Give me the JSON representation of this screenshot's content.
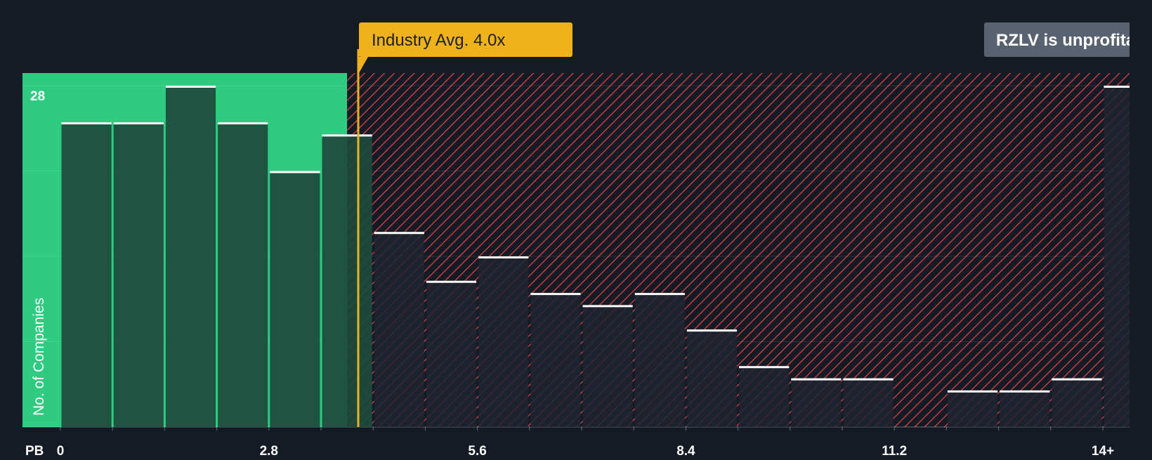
{
  "chart_data": {
    "type": "bar",
    "title": "",
    "xlabel": "PB",
    "ylabel": "No. of Companies",
    "y_tick_label": "28",
    "ylim": [
      0,
      29
    ],
    "bin_width": 0.7,
    "x_ticks": [
      {
        "value": 0,
        "label": "0"
      },
      {
        "value": 2.8,
        "label": "2.8"
      },
      {
        "value": 5.6,
        "label": "5.6"
      },
      {
        "value": 8.4,
        "label": "8.4"
      },
      {
        "value": 11.2,
        "label": "11.2"
      },
      {
        "value": 14,
        "label": "14+"
      }
    ],
    "bins": [
      {
        "x": 0.0,
        "count": 25
      },
      {
        "x": 0.7,
        "count": 25
      },
      {
        "x": 1.4,
        "count": 28
      },
      {
        "x": 2.1,
        "count": 25
      },
      {
        "x": 2.8,
        "count": 21
      },
      {
        "x": 3.5,
        "count": 24
      },
      {
        "x": 4.2,
        "count": 16
      },
      {
        "x": 4.9,
        "count": 12
      },
      {
        "x": 5.6,
        "count": 14
      },
      {
        "x": 6.3,
        "count": 11
      },
      {
        "x": 7.0,
        "count": 10
      },
      {
        "x": 7.7,
        "count": 11
      },
      {
        "x": 8.4,
        "count": 8
      },
      {
        "x": 9.1,
        "count": 5
      },
      {
        "x": 9.8,
        "count": 4
      },
      {
        "x": 10.5,
        "count": 4
      },
      {
        "x": 11.2,
        "count": 0
      },
      {
        "x": 11.9,
        "count": 3
      },
      {
        "x": 12.6,
        "count": 3
      },
      {
        "x": 13.3,
        "count": 4
      },
      {
        "x": 14.0,
        "count": 28
      }
    ],
    "industry_avg": {
      "value": 4.0,
      "label": "Industry Avg. 4.0x"
    },
    "company_label": "RZLV is unprofitable",
    "fair_region_max": 3.85,
    "grid": true,
    "colors": {
      "background": "#151b24",
      "fair_region": "#2ecb80",
      "fair_bar": "#1d4a3c",
      "hatch": "#d9414a",
      "overvalued_bar": "#1e2430",
      "bar_top": "#ffffff",
      "avg_line": "#efb21a",
      "avg_label_bg": "#efb21a",
      "avg_label_text": "#1b1f28",
      "company_label_bg": "#586270",
      "company_label_text": "#ffffff",
      "axis_text": "#ffffff"
    }
  }
}
